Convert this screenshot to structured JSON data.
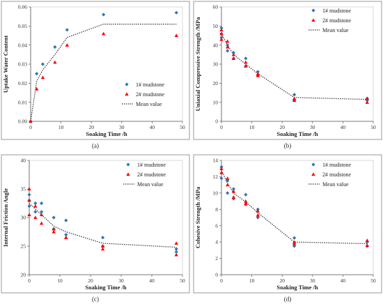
{
  "colors": {
    "mudstone1": "#2e75b6",
    "mudstone2": "#ff0000",
    "mean": "#333333",
    "frame": "#7f7f7f",
    "grid": "#d9d9d9"
  },
  "chart_data": [
    {
      "type": "scatter",
      "caption": "(a)",
      "xlabel": "Soaking Time /h",
      "ylabel": "Uptake Water Content",
      "xlim": [
        0,
        50
      ],
      "xticks": [
        0,
        10,
        20,
        30,
        40,
        50
      ],
      "ylim": [
        0,
        0.06
      ],
      "yticks": [
        0.0,
        0.01,
        0.02,
        0.03,
        0.04,
        0.05,
        0.06
      ],
      "ydecimals": 2,
      "grid": false,
      "legend_position": "bottom-right",
      "series": [
        {
          "name": "1# mudstone",
          "marker": "diamond",
          "x": [
            0,
            2,
            4,
            8,
            12,
            24,
            48
          ],
          "y": [
            0.0,
            0.025,
            0.03,
            0.039,
            0.048,
            0.056,
            0.057
          ]
        },
        {
          "name": "2# mudstone",
          "marker": "triangle",
          "x": [
            0,
            2,
            4,
            8,
            12,
            24,
            48
          ],
          "y": [
            0.0,
            0.017,
            0.023,
            0.031,
            0.04,
            0.046,
            0.045
          ]
        },
        {
          "name": "Mean value",
          "marker": "dotted-line",
          "x": [
            0,
            2,
            4,
            8,
            12,
            24,
            48
          ],
          "y": [
            0.0,
            0.021,
            0.027,
            0.035,
            0.044,
            0.051,
            0.051
          ]
        }
      ]
    },
    {
      "type": "scatter",
      "caption": "(b)",
      "xlabel": "Soaking Time /h",
      "ylabel": "Uniaxial Compressive Strength /MPa",
      "xlim": [
        0,
        50
      ],
      "xticks": [
        0,
        10,
        20,
        30,
        40,
        50
      ],
      "ylim": [
        0,
        60
      ],
      "yticks": [
        0,
        10,
        20,
        30,
        40,
        50,
        60
      ],
      "ydecimals": 0,
      "grid": false,
      "legend_position": "top-right",
      "series": [
        {
          "name": "1# mudstone",
          "marker": "diamond",
          "x": [
            0,
            0,
            0,
            2,
            2,
            4,
            4,
            8,
            8,
            12,
            12,
            24,
            24,
            48,
            48
          ],
          "y": [
            49,
            46,
            44,
            40,
            37,
            36,
            33,
            33,
            29,
            26,
            24,
            14,
            11,
            12,
            11
          ]
        },
        {
          "name": "2# mudstone",
          "marker": "triangle",
          "x": [
            0,
            0,
            0,
            2,
            2,
            4,
            4,
            8,
            8,
            12,
            12,
            24,
            24,
            48,
            48
          ],
          "y": [
            48,
            46,
            43,
            42,
            39,
            35,
            33,
            31,
            29,
            25,
            24,
            12,
            11,
            12,
            10
          ]
        },
        {
          "name": "Mean value",
          "marker": "dotted-line",
          "x": [
            0,
            2,
            4,
            8,
            12,
            24,
            48
          ],
          "y": [
            46,
            40,
            35,
            30,
            25,
            12.5,
            11.5
          ]
        }
      ]
    },
    {
      "type": "scatter",
      "caption": "(c)",
      "xlabel": "Soaking Time /h",
      "ylabel": "Internal Friction Angle",
      "xlim": [
        0,
        50
      ],
      "xticks": [
        0,
        10,
        20,
        30,
        40,
        50
      ],
      "ylim": [
        20,
        40
      ],
      "yticks": [
        20,
        25,
        30,
        35,
        40
      ],
      "ydecimals": 0,
      "grid": false,
      "legend_position": "top-right",
      "series": [
        {
          "name": "1# mudstone",
          "marker": "diamond",
          "x": [
            0,
            0,
            0,
            2,
            2,
            4,
            4,
            8,
            8,
            12,
            12,
            24,
            24,
            48,
            48
          ],
          "y": [
            34,
            33,
            32,
            32.5,
            31,
            32.5,
            31,
            30,
            28,
            29.5,
            27,
            26.5,
            25,
            24.5,
            24
          ]
        },
        {
          "name": "2# mudstone",
          "marker": "triangle",
          "x": [
            0,
            0,
            0,
            2,
            2,
            4,
            4,
            8,
            8,
            12,
            12,
            24,
            24,
            48,
            48
          ],
          "y": [
            35,
            33,
            30.5,
            32,
            30,
            30.5,
            29,
            28,
            27.5,
            26.5,
            26.5,
            25,
            24.5,
            25.5,
            23.5
          ]
        },
        {
          "name": "Mean value",
          "marker": "dotted-line",
          "x": [
            0,
            2,
            4,
            8,
            12,
            24,
            48
          ],
          "y": [
            32.5,
            31.5,
            30.5,
            28.5,
            27.5,
            25.5,
            24.8
          ]
        }
      ]
    },
    {
      "type": "scatter",
      "caption": "(d)",
      "xlabel": "Soaking Time /h",
      "ylabel": "Cohesive Strength /MPa",
      "xlim": [
        0,
        50
      ],
      "xticks": [
        0,
        10,
        20,
        30,
        40,
        50
      ],
      "ylim": [
        0,
        14
      ],
      "yticks": [
        0,
        2,
        4,
        6,
        8,
        10,
        12,
        14
      ],
      "ydecimals": 0,
      "grid": false,
      "legend_position": "top-right",
      "series": [
        {
          "name": "1# mudstone",
          "marker": "diamond",
          "x": [
            0,
            0,
            2,
            2,
            4,
            4,
            8,
            8,
            12,
            12,
            24,
            24,
            48,
            48
          ],
          "y": [
            13.2,
            11.8,
            11.5,
            10,
            10.5,
            9.3,
            9.8,
            8.6,
            8.0,
            7.0,
            4.5,
            3.5,
            4.0,
            3.5
          ]
        },
        {
          "name": "2# mudstone",
          "marker": "triangle",
          "x": [
            0,
            0,
            2,
            2,
            4,
            4,
            8,
            8,
            12,
            12,
            24,
            24,
            48,
            48
          ],
          "y": [
            13.0,
            12.5,
            11.8,
            11,
            10.2,
            9.5,
            9.0,
            8.7,
            7.8,
            7.3,
            4.0,
            3.8,
            4.2,
            3.6
          ]
        },
        {
          "name": "Mean value",
          "marker": "dotted-line",
          "x": [
            0,
            2,
            4,
            8,
            12,
            24,
            48
          ],
          "y": [
            12.8,
            11.2,
            10.0,
            8.9,
            7.6,
            4.0,
            3.8
          ]
        }
      ]
    }
  ]
}
